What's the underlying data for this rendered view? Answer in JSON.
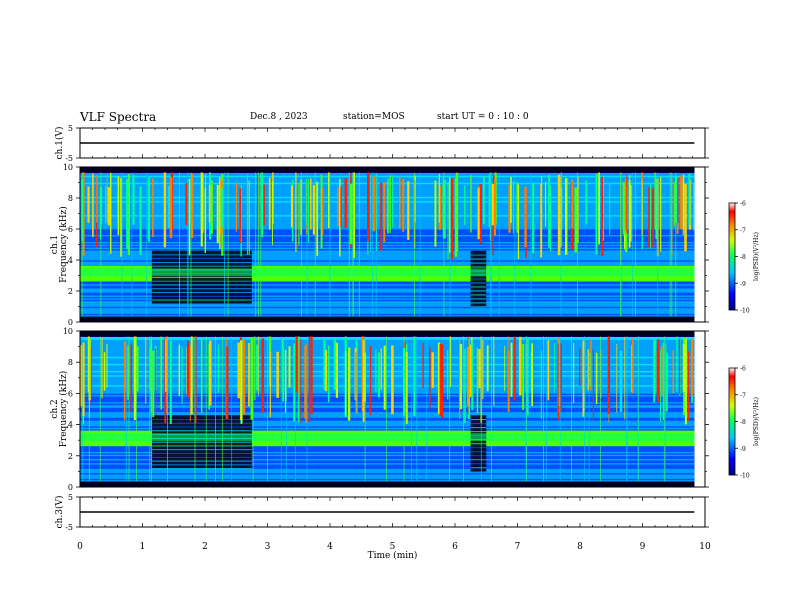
{
  "header": {
    "title": "VLF Spectra",
    "date": "Dec.8 , 2023",
    "station": "station=MOS",
    "start_ut": "start UT = 0 : 10 : 0"
  },
  "chart_data": [
    {
      "type": "line",
      "panel": "ch1-voltage",
      "ylabel": "ch.1(V)",
      "ylim": [
        -5,
        5
      ],
      "yticks": [
        "5",
        "-5"
      ],
      "x": [
        0,
        9.83
      ],
      "values": [
        0,
        0
      ]
    },
    {
      "type": "heatmap",
      "panel": "ch1-spectrogram",
      "ylabel_channel": "ch.1",
      "ylabel": "Frequency (kHz)",
      "ylim": [
        0,
        10
      ],
      "yticks": [
        "0",
        "2",
        "4",
        "6",
        "8",
        "10"
      ],
      "xlim": [
        0,
        10
      ],
      "data_end_min": 9.83,
      "colorbar": {
        "label": "log(PSD)(V²/Hz)",
        "range": [
          -10,
          -6
        ],
        "ticks": [
          "-6",
          "-7",
          "-8",
          "-9",
          "-10"
        ]
      }
    },
    {
      "type": "heatmap",
      "panel": "ch2-spectrogram",
      "ylabel_channel": "ch.2",
      "ylabel": "Frequency (kHz)",
      "ylim": [
        0,
        10
      ],
      "yticks": [
        "0",
        "2",
        "4",
        "6",
        "8",
        "10"
      ],
      "xlim": [
        0,
        10
      ],
      "data_end_min": 9.83,
      "colorbar": {
        "label": "log(PSD)(V²/Hz)",
        "range": [
          -10,
          -6
        ],
        "ticks": [
          "-6",
          "-7",
          "-8",
          "-9",
          "-10"
        ]
      }
    },
    {
      "type": "line",
      "panel": "ch3-voltage",
      "ylabel": "ch.3(V)",
      "ylim": [
        -5,
        5
      ],
      "yticks": [
        "5",
        "-5"
      ],
      "x": [
        0,
        9.83
      ],
      "values": [
        0,
        0
      ]
    }
  ],
  "xaxis": {
    "label": "Time (min)",
    "range": [
      0,
      10
    ],
    "ticks": [
      "0",
      "1",
      "2",
      "3",
      "4",
      "5",
      "6",
      "7",
      "8",
      "9",
      "10"
    ]
  }
}
